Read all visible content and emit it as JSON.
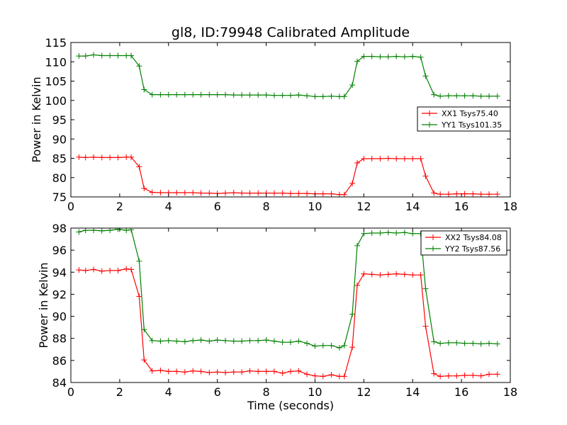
{
  "title": "gl8, ID:79948 Calibrated Amplitude",
  "colors": {
    "red": "#ff0000",
    "green": "#008000",
    "axis": "#000000",
    "background": "#ffffff"
  },
  "chart_data": [
    {
      "type": "line",
      "title": "gl8, ID:79948 Calibrated Amplitude",
      "xlabel": "",
      "ylabel": "Power in Kelvin",
      "xlim": [
        0,
        18
      ],
      "ylim": [
        75,
        115
      ],
      "xticks": [
        0,
        2,
        4,
        6,
        8,
        10,
        12,
        14,
        16,
        18
      ],
      "yticks": [
        75,
        80,
        85,
        90,
        95,
        100,
        105,
        110,
        115
      ],
      "grid": false,
      "legend_position": "center-right",
      "marker": "plus",
      "x": [
        0.33,
        0.6,
        0.93,
        1.27,
        1.6,
        1.93,
        2.27,
        2.47,
        2.8,
        3.0,
        3.33,
        3.67,
        4.0,
        4.33,
        4.67,
        5.0,
        5.33,
        5.67,
        6.0,
        6.33,
        6.67,
        7.0,
        7.33,
        7.67,
        8.0,
        8.33,
        8.67,
        9.0,
        9.33,
        9.67,
        10.0,
        10.33,
        10.67,
        11.0,
        11.2,
        11.53,
        11.73,
        12.0,
        12.33,
        12.67,
        13.0,
        13.33,
        13.67,
        14.0,
        14.33,
        14.53,
        14.87,
        15.13,
        15.47,
        15.8,
        16.13,
        16.47,
        16.8,
        17.13,
        17.47
      ],
      "series": [
        {
          "name": "XX1 Tsys75.40",
          "color": "#ff0000",
          "values": [
            85.3,
            85.2,
            85.3,
            85.2,
            85.2,
            85.2,
            85.3,
            85.3,
            82.8,
            77.2,
            76.2,
            76.1,
            76.1,
            76.1,
            76.1,
            76.1,
            76.0,
            76.0,
            75.9,
            76.0,
            76.1,
            76.0,
            76.0,
            76.0,
            76.0,
            76.0,
            76.0,
            75.9,
            75.9,
            75.9,
            75.8,
            75.8,
            75.8,
            75.6,
            75.6,
            78.5,
            83.8,
            84.9,
            84.9,
            84.9,
            85.0,
            84.9,
            84.9,
            84.9,
            84.9,
            80.4,
            76.0,
            75.7,
            75.7,
            75.8,
            75.8,
            75.8,
            75.7,
            75.7,
            75.7
          ]
        },
        {
          "name": "YY1 Tsys101.35",
          "color": "#008000",
          "values": [
            111.5,
            111.5,
            111.8,
            111.6,
            111.6,
            111.6,
            111.6,
            111.6,
            108.9,
            102.8,
            101.5,
            101.5,
            101.5,
            101.5,
            101.5,
            101.5,
            101.5,
            101.5,
            101.5,
            101.5,
            101.4,
            101.4,
            101.4,
            101.4,
            101.4,
            101.3,
            101.3,
            101.3,
            101.4,
            101.2,
            101.0,
            101.0,
            101.1,
            101.0,
            101.0,
            104.0,
            110.1,
            111.4,
            111.4,
            111.3,
            111.3,
            111.4,
            111.3,
            111.4,
            111.2,
            106.3,
            101.5,
            101.1,
            101.2,
            101.2,
            101.2,
            101.2,
            101.1,
            101.1,
            101.1
          ]
        }
      ]
    },
    {
      "type": "line",
      "title": "",
      "xlabel": "Time (seconds)",
      "ylabel": "Power in Kelvin",
      "xlim": [
        0,
        18
      ],
      "ylim": [
        84,
        98
      ],
      "xticks": [
        0,
        2,
        4,
        6,
        8,
        10,
        12,
        14,
        16,
        18
      ],
      "yticks": [
        84,
        86,
        88,
        90,
        92,
        94,
        96,
        98
      ],
      "grid": false,
      "legend_position": "top-right",
      "marker": "plus",
      "x": [
        0.33,
        0.6,
        0.93,
        1.27,
        1.6,
        1.93,
        2.27,
        2.47,
        2.8,
        3.0,
        3.33,
        3.67,
        4.0,
        4.33,
        4.67,
        5.0,
        5.33,
        5.67,
        6.0,
        6.33,
        6.67,
        7.0,
        7.33,
        7.67,
        8.0,
        8.33,
        8.67,
        9.0,
        9.33,
        9.67,
        10.0,
        10.33,
        10.67,
        11.0,
        11.2,
        11.53,
        11.73,
        12.0,
        12.33,
        12.67,
        13.0,
        13.33,
        13.67,
        14.0,
        14.33,
        14.53,
        14.87,
        15.13,
        15.47,
        15.8,
        16.13,
        16.47,
        16.8,
        17.13,
        17.47
      ],
      "series": [
        {
          "name": "XX2 Tsys84.08",
          "color": "#ff0000",
          "values": [
            94.2,
            94.15,
            94.25,
            94.1,
            94.15,
            94.15,
            94.3,
            94.25,
            91.8,
            86.05,
            85.05,
            85.1,
            85.0,
            85.0,
            84.95,
            85.05,
            85.0,
            84.9,
            84.95,
            84.9,
            84.95,
            84.95,
            85.05,
            85.0,
            85.0,
            85.0,
            84.85,
            85.0,
            85.05,
            84.75,
            84.6,
            84.55,
            84.7,
            84.55,
            84.55,
            87.2,
            92.8,
            93.85,
            93.8,
            93.75,
            93.8,
            93.85,
            93.8,
            93.75,
            93.75,
            89.1,
            84.8,
            84.55,
            84.6,
            84.6,
            84.65,
            84.65,
            84.6,
            84.75,
            84.75
          ]
        },
        {
          "name": "YY2 Tsys87.56",
          "color": "#008000",
          "values": [
            97.65,
            97.8,
            97.8,
            97.75,
            97.8,
            97.9,
            97.8,
            97.85,
            95.0,
            88.8,
            87.8,
            87.75,
            87.8,
            87.75,
            87.7,
            87.8,
            87.85,
            87.75,
            87.85,
            87.8,
            87.75,
            87.75,
            87.8,
            87.8,
            87.85,
            87.75,
            87.65,
            87.65,
            87.75,
            87.55,
            87.3,
            87.35,
            87.35,
            87.15,
            87.35,
            90.2,
            96.4,
            97.5,
            97.55,
            97.55,
            97.6,
            97.55,
            97.6,
            97.5,
            97.5,
            92.5,
            87.7,
            87.55,
            87.6,
            87.6,
            87.55,
            87.55,
            87.5,
            87.55,
            87.5
          ]
        }
      ]
    }
  ]
}
